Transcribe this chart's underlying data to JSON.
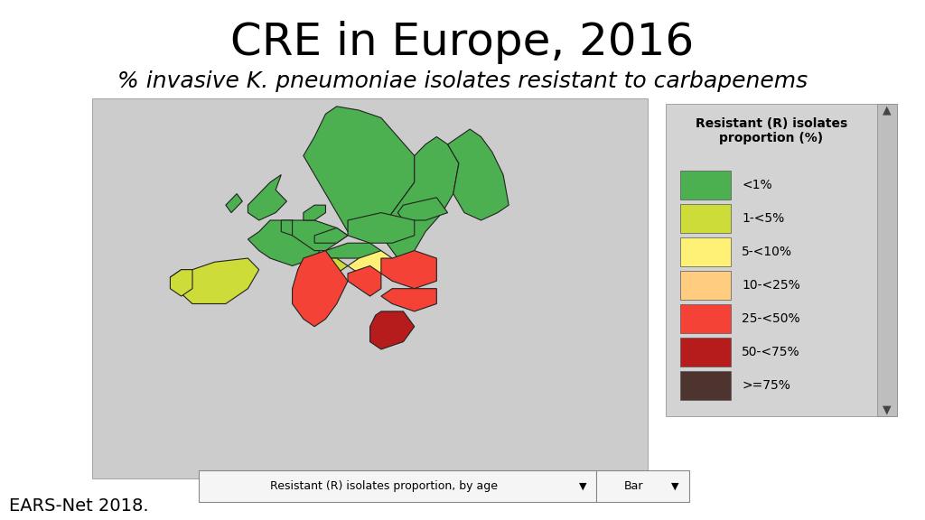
{
  "title": "CRE in Europe, 2016",
  "subtitle": "% invasive K. pneumoniae isolates resistant to carbapenems",
  "footer": "EARS-Net 2018.",
  "legend_title": "Resistant (R) isolates\nproportion (%)",
  "legend_items": [
    {
      "label": "<1%",
      "color": "#4CAF50"
    },
    {
      "label": "1-<5%",
      "color": "#CDDC39"
    },
    {
      "label": "5-<10%",
      "color": "#FFF176"
    },
    {
      "label": "10-<25%",
      "color": "#FFCC80"
    },
    {
      "label": "25-<50%",
      "color": "#F44336"
    },
    {
      "label": "50-<75%",
      "color": "#B71C1C"
    },
    {
      "label": ">=75%",
      "color": "#4E342E"
    }
  ],
  "dropdown1": "Resistant (R) isolates proportion, by age",
  "dropdown2": "Bar",
  "bg_color": "#FFFFFF",
  "map_bg": "#CCCCCC",
  "legend_bg": "#D3D3D3",
  "title_fontsize": 36,
  "subtitle_fontsize": 18,
  "footer_fontsize": 14
}
